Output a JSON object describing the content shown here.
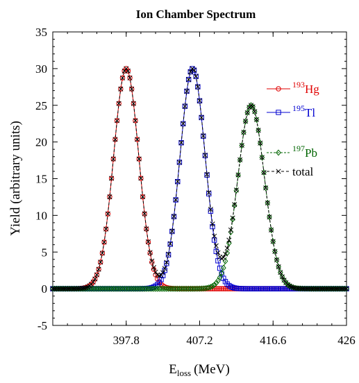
{
  "chart_data": {
    "type": "line",
    "title": "Ion Chamber Spectrum",
    "xlabel": {
      "main": "E",
      "sub": "loss",
      "unit": "(MeV)"
    },
    "ylabel": "Yield (arbitrary units)",
    "xlim": [
      388.4,
      426
    ],
    "ylim": [
      -5,
      35
    ],
    "xticks": [
      "397.8",
      "407.2",
      "416.6",
      "426"
    ],
    "yticks": [
      "-5",
      "0",
      "5",
      "10",
      "15",
      "20",
      "25",
      "30",
      "35"
    ],
    "grid": false,
    "legend_position": "right",
    "series": [
      {
        "name_sup": "193",
        "name_base": "Hg",
        "color": "#e00000",
        "marker": "circle",
        "peak": {
          "center": 397.8,
          "amplitude": 30,
          "sigma": 1.6
        }
      },
      {
        "name_sup": "195",
        "name_base": "Tl",
        "color": "#0000d0",
        "marker": "square",
        "peak": {
          "center": 406.3,
          "amplitude": 30,
          "sigma": 1.6
        }
      },
      {
        "name_sup": "197",
        "name_base": "Pb",
        "color": "#006400",
        "marker": "diamond",
        "peak": {
          "center": 413.8,
          "amplitude": 25,
          "sigma": 1.7
        }
      },
      {
        "name_sup": "",
        "name_base": "total",
        "color": "#000000",
        "marker": "cross",
        "peak": null
      }
    ],
    "x_range": [
      388.4,
      426
    ]
  }
}
